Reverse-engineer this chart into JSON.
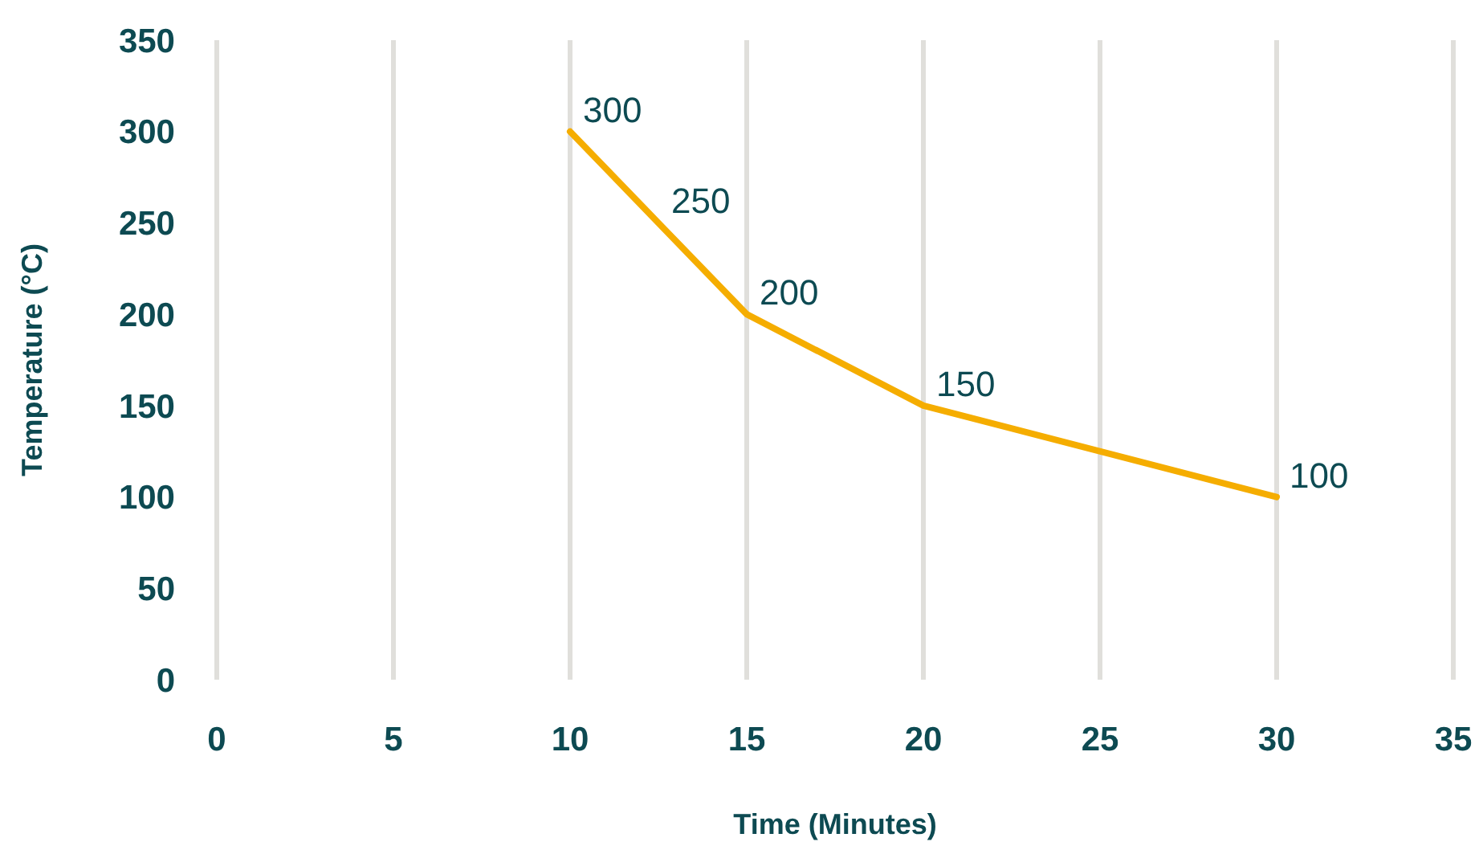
{
  "chart_data": {
    "type": "line",
    "xlabel": "Time (Minutes)",
    "ylabel": "Temperature (°C)",
    "x": [
      10,
      12.5,
      15,
      20,
      30
    ],
    "series": [
      {
        "color": "#f5ad00",
        "values": [
          300,
          250,
          200,
          150,
          100
        ]
      }
    ],
    "data_labels": true,
    "xlim": [
      0,
      35
    ],
    "xticks": [
      0,
      5,
      10,
      15,
      20,
      25,
      30,
      35
    ],
    "ylim": [
      0,
      350
    ],
    "yticks": [
      0,
      50,
      100,
      150,
      200,
      250,
      300,
      350
    ],
    "grid": "x",
    "marker": "none",
    "line_style": "solid"
  }
}
